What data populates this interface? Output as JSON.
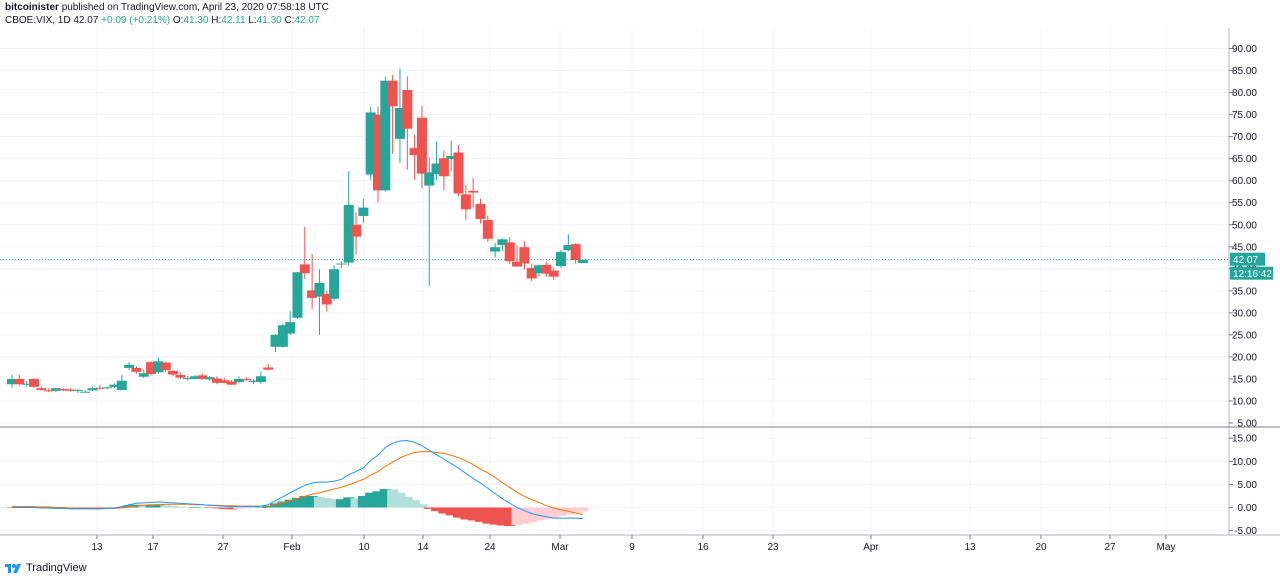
{
  "header": {
    "author": "bitcoinister",
    "published_text": "published on TradingView.com, April 23, 2020 07:58:18 UTC",
    "symbol": "CBOE:VIX, 1D",
    "last": "42.07",
    "change": "+0.09 (+0.21%)",
    "o_label": "O:",
    "o_value": "41.30",
    "h_label": "H:",
    "h_value": "42.11",
    "l_label": "L:",
    "l_value": "41.30",
    "c_label": "C:",
    "c_value": "42.07"
  },
  "footer": {
    "brand": "TradingView",
    "logo_icon": "tradingview-logo-icon"
  },
  "colors": {
    "up": "#26a69a",
    "down": "#ef5350",
    "hist_up_strong": "#26a69a",
    "hist_up_weak": "#b2dfdb",
    "hist_down_strong": "#ef5350",
    "hist_down_weak": "#ffcdd2",
    "macd_line": "#2196f3",
    "signal_line": "#ff6d00",
    "grid": "#f0f3fa",
    "price_line": "#26a69a"
  },
  "chart_data": {
    "type": "candlestick",
    "price_axis": {
      "range": [
        5,
        92
      ],
      "ticks": [
        "90.00",
        "85.00",
        "80.00",
        "75.00",
        "70.00",
        "65.00",
        "60.00",
        "55.00",
        "50.00",
        "45.00",
        "40.00",
        "35.00",
        "30.00",
        "25.00",
        "20.00",
        "15.00",
        "10.00",
        "5.00"
      ]
    },
    "indicator_axis": {
      "range": [
        -5.5,
        16
      ],
      "ticks": [
        "15.00",
        "10.00",
        "5.00",
        "0.00",
        "-5.00"
      ]
    },
    "time_axis": {
      "labels": [
        "13",
        "17",
        "27",
        "Feb",
        "10",
        "14",
        "24",
        "Mar",
        "9",
        "16",
        "23",
        "Apr",
        "13",
        "20",
        "27",
        "May"
      ]
    },
    "last_price_label": "42.07",
    "countdown_label": "12:16:42",
    "candles": [
      {
        "o": 13.8,
        "h": 16.0,
        "l": 13.0,
        "c": 15.0
      },
      {
        "o": 15.0,
        "h": 16.0,
        "l": 13.5,
        "c": 13.8
      },
      {
        "o": 13.9,
        "h": 14.5,
        "l": 13.3,
        "c": 13.9
      },
      {
        "o": 15.0,
        "h": 15.2,
        "l": 13.0,
        "c": 13.2
      },
      {
        "o": 12.9,
        "h": 13.3,
        "l": 12.3,
        "c": 12.5
      },
      {
        "o": 12.4,
        "h": 12.8,
        "l": 12.0,
        "c": 12.3
      },
      {
        "o": 12.3,
        "h": 13.0,
        "l": 12.0,
        "c": 12.9
      },
      {
        "o": 12.7,
        "h": 13.0,
        "l": 12.2,
        "c": 12.4
      },
      {
        "o": 12.6,
        "h": 12.9,
        "l": 12.1,
        "c": 12.3
      },
      {
        "o": 12.3,
        "h": 12.8,
        "l": 11.8,
        "c": 12.5
      },
      {
        "o": 12.1,
        "h": 12.5,
        "l": 11.8,
        "c": 12.1
      },
      {
        "o": 12.4,
        "h": 13.2,
        "l": 12.2,
        "c": 12.9
      },
      {
        "o": 13.0,
        "h": 13.6,
        "l": 12.6,
        "c": 12.9
      },
      {
        "o": 12.9,
        "h": 13.3,
        "l": 12.6,
        "c": 13.1
      },
      {
        "o": 13.2,
        "h": 14.0,
        "l": 12.9,
        "c": 13.7
      },
      {
        "o": 12.5,
        "h": 15.9,
        "l": 12.4,
        "c": 14.6
      },
      {
        "o": 17.5,
        "h": 18.9,
        "l": 17.0,
        "c": 18.2
      },
      {
        "o": 17.5,
        "h": 17.9,
        "l": 16.2,
        "c": 16.6
      },
      {
        "o": 15.5,
        "h": 17.2,
        "l": 15.2,
        "c": 16.3
      },
      {
        "o": 18.8,
        "h": 19.0,
        "l": 15.8,
        "c": 16.1
      },
      {
        "o": 16.5,
        "h": 19.9,
        "l": 16.2,
        "c": 19.0
      },
      {
        "o": 18.7,
        "h": 19.0,
        "l": 16.6,
        "c": 17.0
      },
      {
        "o": 16.8,
        "h": 17.1,
        "l": 15.6,
        "c": 16.0
      },
      {
        "o": 15.9,
        "h": 16.5,
        "l": 15.0,
        "c": 15.3
      },
      {
        "o": 15.0,
        "h": 15.7,
        "l": 14.6,
        "c": 15.2
      },
      {
        "o": 15.0,
        "h": 15.9,
        "l": 14.9,
        "c": 15.6
      },
      {
        "o": 15.8,
        "h": 16.3,
        "l": 14.8,
        "c": 15.0
      },
      {
        "o": 14.9,
        "h": 15.6,
        "l": 14.6,
        "c": 15.4
      },
      {
        "o": 15.1,
        "h": 15.6,
        "l": 13.8,
        "c": 14.1
      },
      {
        "o": 14.7,
        "h": 15.2,
        "l": 14.0,
        "c": 14.1
      },
      {
        "o": 14.4,
        "h": 14.7,
        "l": 13.6,
        "c": 13.7
      },
      {
        "o": 14.3,
        "h": 15.6,
        "l": 14.0,
        "c": 15.0
      },
      {
        "o": 15.0,
        "h": 15.4,
        "l": 14.5,
        "c": 14.8
      },
      {
        "o": 14.3,
        "h": 15.0,
        "l": 13.8,
        "c": 14.6
      },
      {
        "o": 14.3,
        "h": 16.7,
        "l": 13.9,
        "c": 15.6
      },
      {
        "o": 17.6,
        "h": 18.4,
        "l": 16.9,
        "c": 17.1
      },
      {
        "o": 22.3,
        "h": 25.2,
        "l": 21.1,
        "c": 25.0
      },
      {
        "o": 22.3,
        "h": 27.6,
        "l": 22.1,
        "c": 27.2
      },
      {
        "o": 25.3,
        "h": 30.4,
        "l": 25.0,
        "c": 27.9
      },
      {
        "o": 28.9,
        "h": 39.3,
        "l": 28.6,
        "c": 39.2
      },
      {
        "o": 41.0,
        "h": 49.5,
        "l": 37.7,
        "c": 39.0
      },
      {
        "o": 35.1,
        "h": 43.4,
        "l": 30.8,
        "c": 33.4
      },
      {
        "o": 33.7,
        "h": 39.9,
        "l": 25.0,
        "c": 36.8
      },
      {
        "o": 34.3,
        "h": 35.0,
        "l": 30.3,
        "c": 31.9
      },
      {
        "o": 33.2,
        "h": 40.8,
        "l": 32.8,
        "c": 39.9
      },
      {
        "o": 41.0,
        "h": 41.7,
        "l": 40.1,
        "c": 41.2
      },
      {
        "o": 41.4,
        "h": 62.1,
        "l": 40.7,
        "c": 54.5
      },
      {
        "o": 50.0,
        "h": 52.8,
        "l": 43.2,
        "c": 47.3
      },
      {
        "o": 52.0,
        "h": 55.9,
        "l": 50.4,
        "c": 53.9
      },
      {
        "o": 61.4,
        "h": 76.8,
        "l": 60.1,
        "c": 75.5
      },
      {
        "o": 75.0,
        "h": 76.8,
        "l": 55.0,
        "c": 57.8
      },
      {
        "o": 57.8,
        "h": 83.6,
        "l": 57.5,
        "c": 82.7
      },
      {
        "o": 82.7,
        "h": 84.0,
        "l": 66.1,
        "c": 76.9
      },
      {
        "o": 69.5,
        "h": 85.5,
        "l": 64.0,
        "c": 76.5
      },
      {
        "o": 80.6,
        "h": 83.7,
        "l": 62.5,
        "c": 71.8
      },
      {
        "o": 67.4,
        "h": 70.5,
        "l": 60.2,
        "c": 65.8
      },
      {
        "o": 74.3,
        "h": 77.0,
        "l": 58.3,
        "c": 61.6
      },
      {
        "o": 58.9,
        "h": 65.3,
        "l": 36.0,
        "c": 61.9
      },
      {
        "o": 61.5,
        "h": 68.9,
        "l": 60.1,
        "c": 63.9
      },
      {
        "o": 65.1,
        "h": 66.9,
        "l": 57.9,
        "c": 61.0
      },
      {
        "o": 64.9,
        "h": 69.1,
        "l": 62.1,
        "c": 65.6
      },
      {
        "o": 66.4,
        "h": 68.1,
        "l": 56.5,
        "c": 57.1
      },
      {
        "o": 56.9,
        "h": 59.0,
        "l": 51.1,
        "c": 53.5
      },
      {
        "o": 57.7,
        "h": 60.6,
        "l": 53.9,
        "c": 57.3
      },
      {
        "o": 54.7,
        "h": 55.9,
        "l": 50.3,
        "c": 51.3
      },
      {
        "o": 51.1,
        "h": 52.1,
        "l": 46.1,
        "c": 46.8
      },
      {
        "o": 43.9,
        "h": 45.8,
        "l": 42.6,
        "c": 44.9
      },
      {
        "o": 45.4,
        "h": 46.9,
        "l": 44.0,
        "c": 46.7
      },
      {
        "o": 46.0,
        "h": 47.2,
        "l": 41.1,
        "c": 41.7
      },
      {
        "o": 41.6,
        "h": 45.3,
        "l": 40.6,
        "c": 40.5
      },
      {
        "o": 44.9,
        "h": 46.2,
        "l": 39.8,
        "c": 41.2
      },
      {
        "o": 40.2,
        "h": 41.2,
        "l": 37.2,
        "c": 37.8
      },
      {
        "o": 39.0,
        "h": 41.0,
        "l": 38.3,
        "c": 40.8
      },
      {
        "o": 40.9,
        "h": 41.6,
        "l": 38.2,
        "c": 38.9
      },
      {
        "o": 39.6,
        "h": 40.2,
        "l": 37.5,
        "c": 38.2
      },
      {
        "o": 40.6,
        "h": 44.3,
        "l": 40.2,
        "c": 43.8
      },
      {
        "o": 44.2,
        "h": 47.8,
        "l": 44.0,
        "c": 45.4
      },
      {
        "o": 45.6,
        "h": 45.8,
        "l": 41.2,
        "c": 42.0
      },
      {
        "o": 41.3,
        "h": 42.1,
        "l": 41.3,
        "c": 42.07
      }
    ],
    "macd_histogram": [
      -0.1,
      -0.1,
      -0.1,
      -0.1,
      -0.1,
      -0.1,
      -0.1,
      -0.1,
      -0.1,
      -0.1,
      -0.1,
      -0.1,
      -0.1,
      -0.1,
      -0.1,
      0.1,
      0.5,
      0.6,
      0.5,
      0.5,
      0.6,
      0.5,
      0.3,
      0.2,
      0.1,
      0.1,
      0.0,
      -0.1,
      -0.2,
      -0.3,
      -0.4,
      -0.3,
      -0.2,
      -0.1,
      0.0,
      0.3,
      0.9,
      1.3,
      1.7,
      2.1,
      2.5,
      2.5,
      2.3,
      2.0,
      1.8,
      1.8,
      2.2,
      2.0,
      2.5,
      3.2,
      3.5,
      4.0,
      3.9,
      3.2,
      2.3,
      1.6,
      0.7,
      -0.3,
      -0.8,
      -1.3,
      -1.7,
      -2.2,
      -2.6,
      -2.8,
      -3.1,
      -3.5,
      -3.7,
      -3.9,
      -4.0,
      -3.8,
      -3.5,
      -3.2,
      -2.8,
      -2.5,
      -2.2,
      -1.8,
      -1.5,
      -1.1,
      -0.8
    ],
    "macd_line": [
      0.0,
      0.0,
      0.0,
      0.0,
      -0.1,
      -0.1,
      -0.2,
      -0.2,
      -0.3,
      -0.3,
      -0.3,
      -0.3,
      -0.3,
      -0.2,
      -0.1,
      0.2,
      0.6,
      0.9,
      1.0,
      1.1,
      1.2,
      1.1,
      1.0,
      0.9,
      0.8,
      0.7,
      0.6,
      0.5,
      0.4,
      0.3,
      0.2,
      0.2,
      0.2,
      0.2,
      0.3,
      0.6,
      1.5,
      2.3,
      3.2,
      4.0,
      4.8,
      5.3,
      5.5,
      5.5,
      5.7,
      6.1,
      7.1,
      7.8,
      8.6,
      10.2,
      11.3,
      13.0,
      13.9,
      14.4,
      14.5,
      14.1,
      13.4,
      12.4,
      11.4,
      10.5,
      9.5,
      8.5,
      7.4,
      6.3,
      5.3,
      4.2,
      3.0,
      1.9,
      0.9,
      0.0,
      -0.7,
      -1.3,
      -1.7,
      -2.0,
      -2.3,
      -2.3,
      -2.3,
      -2.3,
      -2.4
    ],
    "signal_line": [
      0.2,
      0.2,
      0.2,
      0.2,
      0.1,
      0.1,
      0.0,
      0.0,
      -0.1,
      -0.2,
      -0.2,
      -0.2,
      -0.2,
      -0.2,
      -0.2,
      -0.1,
      0.1,
      0.3,
      0.5,
      0.6,
      0.6,
      0.7,
      0.7,
      0.7,
      0.7,
      0.6,
      0.6,
      0.5,
      0.5,
      0.4,
      0.4,
      0.3,
      0.3,
      0.3,
      0.3,
      0.3,
      0.6,
      1.0,
      1.5,
      1.9,
      2.4,
      2.9,
      3.2,
      3.6,
      4.0,
      4.4,
      4.9,
      5.5,
      6.1,
      7.0,
      7.8,
      8.9,
      9.8,
      10.7,
      11.4,
      11.9,
      12.1,
      12.1,
      11.9,
      11.7,
      11.3,
      10.8,
      10.1,
      9.3,
      8.3,
      7.5,
      6.5,
      5.4,
      4.3,
      3.3,
      2.4,
      1.7,
      1.1,
      0.4,
      -0.1,
      -0.5,
      -0.8,
      -1.2,
      -1.5
    ]
  }
}
